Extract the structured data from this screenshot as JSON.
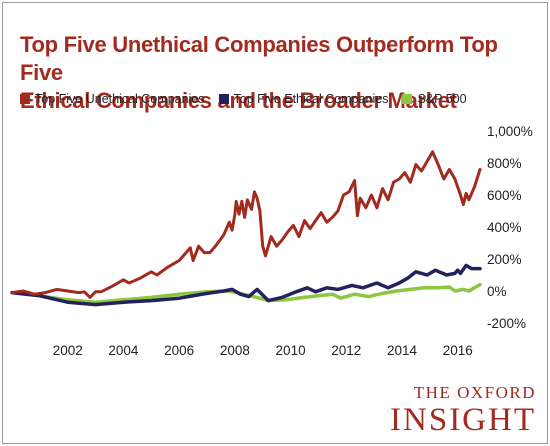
{
  "title_line1": "Top Five Unethical Companies Outperform Top Five",
  "title_line2": "Ethical Companies and the Broader Market",
  "brand": {
    "line1": "THE OXFORD",
    "line2": "INSIGHT"
  },
  "chart_data": {
    "type": "line",
    "title": "Top Five Unethical Companies Outperform Top Five Ethical Companies and the Broader Market",
    "xlabel": "",
    "ylabel": "",
    "xlim": [
      2000.0,
      2016.8
    ],
    "ylim": [
      -200,
      1000
    ],
    "grid": false,
    "legend_position": "top",
    "x_ticks": [
      {
        "value": 2002,
        "label": "2002"
      },
      {
        "value": 2004,
        "label": "2004"
      },
      {
        "value": 2006,
        "label": "2006"
      },
      {
        "value": 2008,
        "label": "2008"
      },
      {
        "value": 2010,
        "label": "2010"
      },
      {
        "value": 2012,
        "label": "2012"
      },
      {
        "value": 2014,
        "label": "2014"
      },
      {
        "value": 2016,
        "label": "2016"
      }
    ],
    "y_ticks": [
      {
        "value": 1000,
        "label": "1,000%"
      },
      {
        "value": 800,
        "label": "800%"
      },
      {
        "value": 600,
        "label": "600%"
      },
      {
        "value": 400,
        "label": "400%"
      },
      {
        "value": 200,
        "label": "200%"
      },
      {
        "value": 0,
        "label": "0%"
      },
      {
        "value": -200,
        "label": "-200%"
      }
    ],
    "series": [
      {
        "name": "Top Five Unethical Companies",
        "color": "#a32a1f",
        "points": [
          [
            2000.0,
            -10
          ],
          [
            2000.4,
            0
          ],
          [
            2000.8,
            -20
          ],
          [
            2001.2,
            -10
          ],
          [
            2001.6,
            10
          ],
          [
            2002.0,
            0
          ],
          [
            2002.4,
            -10
          ],
          [
            2002.6,
            -5
          ],
          [
            2002.8,
            -40
          ],
          [
            2003.0,
            -5
          ],
          [
            2003.2,
            -5
          ],
          [
            2003.6,
            30
          ],
          [
            2004.0,
            70
          ],
          [
            2004.2,
            50
          ],
          [
            2004.6,
            80
          ],
          [
            2005.0,
            120
          ],
          [
            2005.2,
            100
          ],
          [
            2005.6,
            150
          ],
          [
            2006.0,
            190
          ],
          [
            2006.2,
            230
          ],
          [
            2006.4,
            270
          ],
          [
            2006.5,
            190
          ],
          [
            2006.7,
            280
          ],
          [
            2006.9,
            240
          ],
          [
            2007.1,
            240
          ],
          [
            2007.3,
            280
          ],
          [
            2007.6,
            350
          ],
          [
            2007.8,
            430
          ],
          [
            2007.9,
            380
          ],
          [
            2008.0,
            480
          ],
          [
            2008.05,
            560
          ],
          [
            2008.15,
            480
          ],
          [
            2008.25,
            560
          ],
          [
            2008.35,
            460
          ],
          [
            2008.45,
            570
          ],
          [
            2008.6,
            510
          ],
          [
            2008.7,
            620
          ],
          [
            2008.8,
            580
          ],
          [
            2008.9,
            500
          ],
          [
            2009.0,
            280
          ],
          [
            2009.1,
            220
          ],
          [
            2009.3,
            340
          ],
          [
            2009.5,
            280
          ],
          [
            2009.7,
            320
          ],
          [
            2009.9,
            370
          ],
          [
            2010.1,
            410
          ],
          [
            2010.3,
            340
          ],
          [
            2010.5,
            440
          ],
          [
            2010.7,
            390
          ],
          [
            2010.9,
            440
          ],
          [
            2011.1,
            490
          ],
          [
            2011.3,
            430
          ],
          [
            2011.5,
            460
          ],
          [
            2011.7,
            500
          ],
          [
            2011.9,
            600
          ],
          [
            2012.1,
            620
          ],
          [
            2012.3,
            690
          ],
          [
            2012.4,
            470
          ],
          [
            2012.5,
            580
          ],
          [
            2012.7,
            520
          ],
          [
            2012.9,
            600
          ],
          [
            2013.1,
            520
          ],
          [
            2013.3,
            640
          ],
          [
            2013.5,
            570
          ],
          [
            2013.7,
            680
          ],
          [
            2013.9,
            700
          ],
          [
            2014.1,
            740
          ],
          [
            2014.3,
            680
          ],
          [
            2014.5,
            790
          ],
          [
            2014.7,
            750
          ],
          [
            2014.9,
            810
          ],
          [
            2015.1,
            870
          ],
          [
            2015.3,
            790
          ],
          [
            2015.5,
            700
          ],
          [
            2015.7,
            760
          ],
          [
            2015.9,
            700
          ],
          [
            2016.1,
            600
          ],
          [
            2016.2,
            540
          ],
          [
            2016.3,
            610
          ],
          [
            2016.4,
            570
          ],
          [
            2016.6,
            650
          ],
          [
            2016.8,
            760
          ]
        ]
      },
      {
        "name": "Top Five Ethical Companies",
        "color": "#23215e",
        "points": [
          [
            2000.0,
            -10
          ],
          [
            2001.0,
            -30
          ],
          [
            2002.0,
            -70
          ],
          [
            2003.0,
            -85
          ],
          [
            2004.0,
            -70
          ],
          [
            2005.0,
            -60
          ],
          [
            2006.0,
            -45
          ],
          [
            2007.0,
            -15
          ],
          [
            2007.6,
            0
          ],
          [
            2007.9,
            10
          ],
          [
            2008.2,
            -20
          ],
          [
            2008.5,
            -35
          ],
          [
            2008.8,
            10
          ],
          [
            2009.2,
            -60
          ],
          [
            2009.7,
            -40
          ],
          [
            2010.2,
            -5
          ],
          [
            2010.6,
            20
          ],
          [
            2010.9,
            -5
          ],
          [
            2011.3,
            20
          ],
          [
            2011.7,
            10
          ],
          [
            2012.2,
            35
          ],
          [
            2012.6,
            20
          ],
          [
            2013.1,
            50
          ],
          [
            2013.5,
            20
          ],
          [
            2013.9,
            50
          ],
          [
            2014.2,
            80
          ],
          [
            2014.5,
            120
          ],
          [
            2014.9,
            100
          ],
          [
            2015.2,
            130
          ],
          [
            2015.6,
            100
          ],
          [
            2015.9,
            110
          ],
          [
            2016.0,
            130
          ],
          [
            2016.1,
            110
          ],
          [
            2016.3,
            160
          ],
          [
            2016.5,
            140
          ],
          [
            2016.8,
            140
          ]
        ]
      },
      {
        "name": "S&P 500",
        "color": "#8dc63f",
        "points": [
          [
            2000.0,
            -10
          ],
          [
            2001.0,
            -30
          ],
          [
            2002.0,
            -55
          ],
          [
            2003.0,
            -70
          ],
          [
            2004.0,
            -55
          ],
          [
            2005.0,
            -40
          ],
          [
            2006.0,
            -20
          ],
          [
            2007.0,
            -5
          ],
          [
            2007.8,
            0
          ],
          [
            2008.3,
            -20
          ],
          [
            2008.8,
            -40
          ],
          [
            2009.2,
            -60
          ],
          [
            2009.8,
            -55
          ],
          [
            2010.5,
            -40
          ],
          [
            2011.0,
            -30
          ],
          [
            2011.5,
            -20
          ],
          [
            2011.8,
            -45
          ],
          [
            2012.3,
            -20
          ],
          [
            2012.8,
            -35
          ],
          [
            2013.3,
            -15
          ],
          [
            2013.8,
            0
          ],
          [
            2014.3,
            10
          ],
          [
            2014.8,
            20
          ],
          [
            2015.3,
            20
          ],
          [
            2015.7,
            25
          ],
          [
            2015.9,
            0
          ],
          [
            2016.2,
            10
          ],
          [
            2016.4,
            0
          ],
          [
            2016.6,
            20
          ],
          [
            2016.8,
            40
          ]
        ]
      }
    ]
  }
}
